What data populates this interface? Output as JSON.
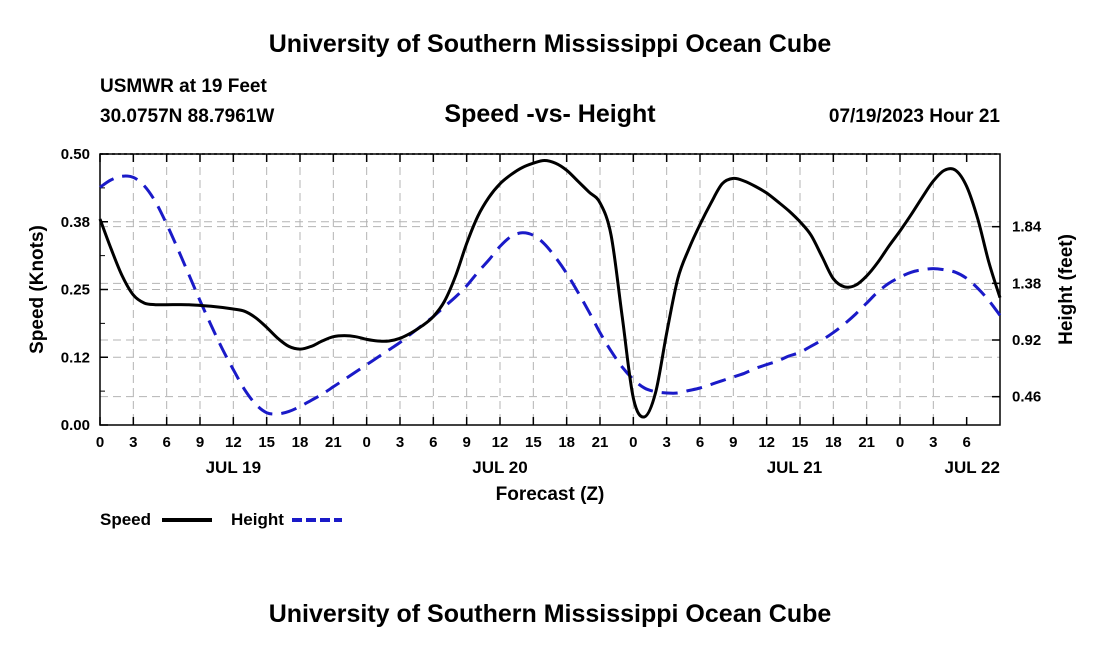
{
  "header": {
    "title": "University of Southern Mississippi Ocean Cube",
    "station": "USMWR at 19 Feet",
    "coords": "30.0757N  88.7961W",
    "subtitle": "Speed -vs- Height",
    "datetime": "07/19/2023 Hour 21"
  },
  "footer": {
    "title": "University of Southern Mississippi Ocean Cube"
  },
  "chart_data": {
    "type": "line",
    "xlabel": "Forecast (Z)",
    "ylabel_left": "Speed (Knots)",
    "ylabel_right": "Height (feet)",
    "x_range_hours": [
      0,
      81
    ],
    "x_ticks": [
      "0",
      "3",
      "6",
      "9",
      "12",
      "15",
      "18",
      "21",
      "0",
      "3",
      "6",
      "9",
      "12",
      "15",
      "18",
      "21",
      "0",
      "3",
      "6",
      "9",
      "12",
      "15",
      "18",
      "21",
      "0",
      "3",
      "6"
    ],
    "day_labels": [
      {
        "label": "JUL 19",
        "hour": 12
      },
      {
        "label": "JUL 20",
        "hour": 36
      },
      {
        "label": "JUL 21",
        "hour": 62.5
      },
      {
        "label": "JUL 22",
        "hour": 78.5
      }
    ],
    "y_left": {
      "range": [
        0,
        0.5
      ],
      "ticks": [
        "0.00",
        "0.12",
        "0.25",
        "0.38",
        "0.50"
      ]
    },
    "y_right": {
      "range": [
        0.23,
        2.43
      ],
      "ticks": [
        "0.46",
        "0.92",
        "1.38",
        "1.84"
      ],
      "tick_values": [
        0.46,
        0.92,
        1.38,
        1.84
      ]
    },
    "grid": true,
    "legend": {
      "position": "bottom-left",
      "entries": [
        "Speed",
        "Height"
      ]
    },
    "series": [
      {
        "name": "Speed",
        "color": "#000000",
        "axis": "left",
        "hours": [
          0,
          1,
          2,
          3,
          4,
          5,
          6,
          8,
          10,
          12,
          13,
          14,
          15,
          16,
          17,
          18,
          19,
          20,
          21,
          22,
          23,
          24,
          25,
          26,
          27,
          28,
          29,
          30,
          31,
          32,
          33,
          34,
          35,
          36,
          37,
          38,
          39,
          40,
          41,
          42,
          43,
          44,
          45,
          46,
          47,
          48,
          49,
          50,
          51,
          52,
          53,
          54,
          55,
          56,
          57,
          58,
          59,
          60,
          61,
          62,
          63,
          64,
          65,
          66,
          67,
          68,
          69,
          70,
          71,
          72,
          73,
          74,
          75,
          76,
          77,
          78,
          79,
          80,
          81
        ],
        "values": [
          0.38,
          0.325,
          0.275,
          0.24,
          0.225,
          0.222,
          0.222,
          0.222,
          0.219,
          0.214,
          0.21,
          0.198,
          0.18,
          0.16,
          0.145,
          0.14,
          0.145,
          0.155,
          0.163,
          0.165,
          0.163,
          0.158,
          0.155,
          0.155,
          0.16,
          0.17,
          0.183,
          0.2,
          0.228,
          0.275,
          0.335,
          0.385,
          0.42,
          0.445,
          0.462,
          0.475,
          0.483,
          0.488,
          0.483,
          0.47,
          0.45,
          0.43,
          0.41,
          0.35,
          0.2,
          0.05,
          0.015,
          0.06,
          0.17,
          0.27,
          0.325,
          0.37,
          0.41,
          0.445,
          0.455,
          0.45,
          0.44,
          0.428,
          0.412,
          0.395,
          0.375,
          0.35,
          0.31,
          0.27,
          0.255,
          0.258,
          0.275,
          0.3,
          0.33,
          0.358,
          0.388,
          0.42,
          0.45,
          0.47,
          0.47,
          0.44,
          0.38,
          0.3,
          0.235
        ]
      },
      {
        "name": "Height",
        "color": "#1a1ac8",
        "axis": "right",
        "hours": [
          0,
          1,
          2,
          3,
          4,
          5,
          6,
          7,
          8,
          9,
          10,
          11,
          12,
          13,
          14,
          15,
          16,
          17,
          18,
          19,
          20,
          21,
          22,
          23,
          24,
          25,
          26,
          27,
          28,
          29,
          30,
          31,
          32,
          33,
          34,
          35,
          36,
          37,
          38,
          39,
          40,
          41,
          42,
          43,
          44,
          45,
          46,
          47,
          48,
          49,
          50,
          51,
          52,
          53,
          54,
          55,
          56,
          57,
          58,
          59,
          60,
          61,
          62,
          63,
          64,
          65,
          66,
          67,
          68,
          69,
          70,
          71,
          72,
          73,
          74,
          75,
          76,
          77,
          78,
          79,
          80,
          81
        ],
        "values": [
          2.16,
          2.22,
          2.25,
          2.24,
          2.17,
          2.04,
          1.86,
          1.66,
          1.45,
          1.24,
          1.04,
          0.85,
          0.68,
          0.52,
          0.4,
          0.33,
          0.32,
          0.34,
          0.38,
          0.43,
          0.48,
          0.54,
          0.6,
          0.66,
          0.72,
          0.78,
          0.84,
          0.9,
          0.97,
          1.04,
          1.11,
          1.19,
          1.27,
          1.36,
          1.47,
          1.57,
          1.68,
          1.76,
          1.79,
          1.77,
          1.7,
          1.59,
          1.46,
          1.31,
          1.15,
          0.98,
          0.83,
          0.7,
          0.6,
          0.53,
          0.5,
          0.49,
          0.49,
          0.51,
          0.53,
          0.56,
          0.59,
          0.62,
          0.65,
          0.69,
          0.72,
          0.75,
          0.79,
          0.82,
          0.87,
          0.92,
          0.98,
          1.05,
          1.13,
          1.22,
          1.31,
          1.38,
          1.43,
          1.47,
          1.49,
          1.5,
          1.49,
          1.47,
          1.42,
          1.34,
          1.24,
          1.12
        ]
      }
    ]
  }
}
